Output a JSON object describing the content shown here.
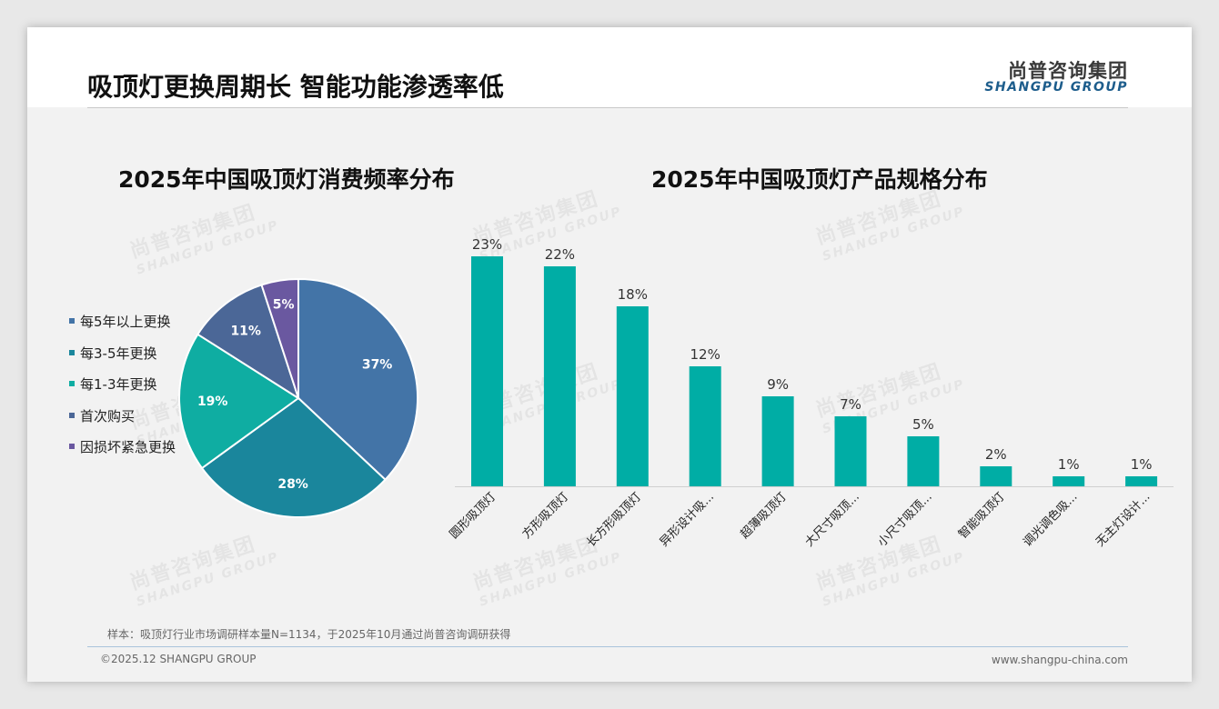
{
  "header": {
    "title": "吸顶灯更换周期长 智能功能渗透率低",
    "logo_cn": "尚普咨询集团",
    "logo_en": "SHANGPU GROUP"
  },
  "watermark": {
    "cn": "尚普咨询集团",
    "en": "SHANGPU GROUP"
  },
  "chart_data": [
    {
      "type": "pie",
      "title": "2025年中国吸顶灯消费频率分布",
      "legend_position": "left",
      "labels": [
        "每5年以上更换",
        "每3-5年更换",
        "每1-3年更换",
        "首次购买",
        "因损坏紧急更换"
      ],
      "values": [
        37,
        28,
        19,
        11,
        5
      ],
      "value_labels": [
        "37%",
        "28%",
        "19%",
        "11%",
        "5%"
      ],
      "unit": "%",
      "colors": [
        "#4374a7",
        "#1a869c",
        "#0fada2",
        "#4b6797",
        "#6a58a0"
      ]
    },
    {
      "type": "bar",
      "title": "2025年中国吸顶灯产品规格分布",
      "categories": [
        "圆形吸顶灯",
        "方形吸顶灯",
        "长方形吸顶灯",
        "异形设计吸...",
        "超薄吸顶灯",
        "大尺寸吸顶...",
        "小尺寸吸顶...",
        "智能吸顶灯",
        "调光调色吸...",
        "无主灯设计..."
      ],
      "values": [
        23,
        22,
        18,
        12,
        9,
        7,
        5,
        2,
        1,
        1
      ],
      "value_labels": [
        "23%",
        "22%",
        "18%",
        "12%",
        "9%",
        "7%",
        "5%",
        "2%",
        "1%",
        "1%"
      ],
      "unit": "%",
      "color": "#00ada5",
      "grid": false
    }
  ],
  "footer": {
    "note": "样本：吸顶灯行业市场调研样本量N=1134，于2025年10月通过尚普咨询调研获得",
    "copyright": "©2025.12 SHANGPU GROUP",
    "website": "www.shangpu-china.com"
  }
}
